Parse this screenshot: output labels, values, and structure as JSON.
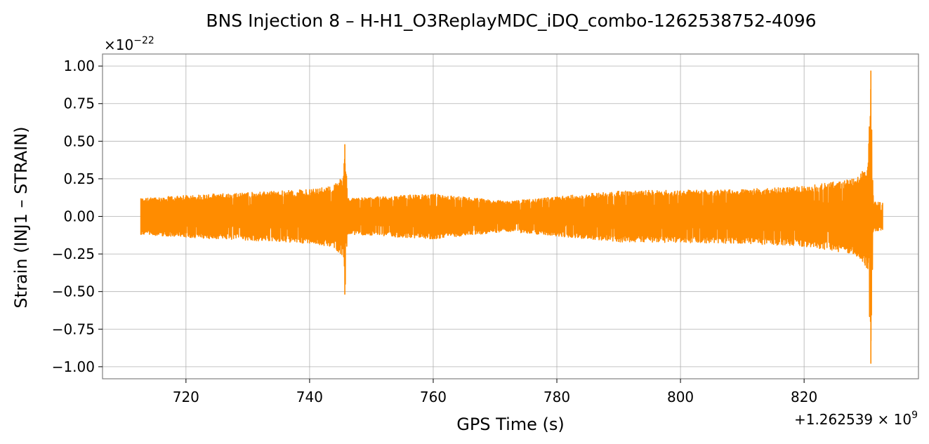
{
  "chart_data": {
    "type": "line",
    "title": "BNS Injection 8 – H-H1_O3ReplayMDC_iDQ_combo-1262538752-4096",
    "xlabel": "GPS Time (s)",
    "ylabel": "Strain (INJ1 – STRAIN)",
    "x_offset_label": "+1.262539 × 10",
    "x_offset_exponent": "9",
    "y_scale_label": "×10",
    "y_scale_exponent": "−22",
    "xlim": [
      706.5,
      838.5
    ],
    "ylim": [
      -1.08,
      1.08
    ],
    "x_ticks": [
      720,
      740,
      760,
      780,
      800,
      820
    ],
    "x_tick_labels": [
      "720",
      "740",
      "760",
      "780",
      "800",
      "820"
    ],
    "y_ticks": [
      1.0,
      0.75,
      0.5,
      0.25,
      0.0,
      -0.25,
      -0.5,
      -0.75,
      -1.0
    ],
    "y_tick_labels": [
      "1.00",
      "0.75",
      "0.50",
      "0.25",
      "0.00",
      "−0.25",
      "−0.50",
      "−0.75",
      "−1.00"
    ],
    "grid": true,
    "series": [
      {
        "color": "#ff8c00",
        "x_start": 712.7,
        "x_end": 832.7,
        "envelope": [
          {
            "x": 712.7,
            "upper": 0.12,
            "lower": -0.12
          },
          {
            "x": 720,
            "upper": 0.14,
            "lower": -0.14
          },
          {
            "x": 730,
            "upper": 0.16,
            "lower": -0.16
          },
          {
            "x": 740,
            "upper": 0.18,
            "lower": -0.18
          },
          {
            "x": 744,
            "upper": 0.21,
            "lower": -0.21
          },
          {
            "x": 745.5,
            "upper": 0.27,
            "lower": -0.27
          },
          {
            "x": 745.7,
            "upper": 0.48,
            "lower": -0.52
          },
          {
            "x": 746.2,
            "upper": 0.12,
            "lower": -0.12
          },
          {
            "x": 760,
            "upper": 0.15,
            "lower": -0.15
          },
          {
            "x": 772,
            "upper": 0.1,
            "lower": -0.1
          },
          {
            "x": 790,
            "upper": 0.17,
            "lower": -0.17
          },
          {
            "x": 810,
            "upper": 0.18,
            "lower": -0.18
          },
          {
            "x": 820,
            "upper": 0.2,
            "lower": -0.2
          },
          {
            "x": 828,
            "upper": 0.25,
            "lower": -0.25
          },
          {
            "x": 830.3,
            "upper": 0.33,
            "lower": -0.35
          },
          {
            "x": 830.8,
            "upper": 0.97,
            "lower": -0.98
          },
          {
            "x": 831.2,
            "upper": 0.1,
            "lower": -0.1
          },
          {
            "x": 832.7,
            "upper": 0.09,
            "lower": -0.09
          }
        ]
      }
    ]
  }
}
